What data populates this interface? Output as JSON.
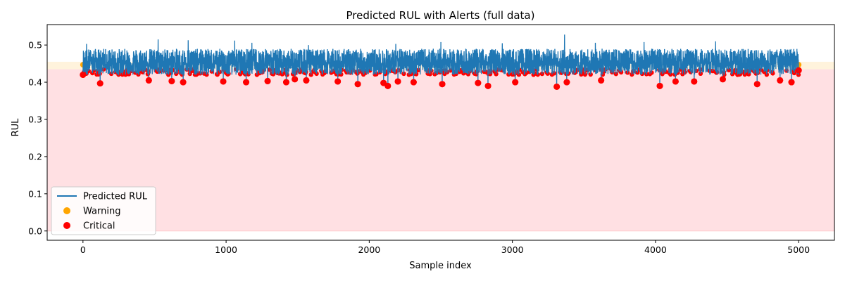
{
  "chart_data": {
    "type": "line",
    "title": "Predicted RUL with Alerts (full data)",
    "xlabel": "Sample index",
    "ylabel": "RUL",
    "xlim": [
      -250,
      5250
    ],
    "ylim": [
      -0.025,
      0.555
    ],
    "xticks": [
      0,
      1000,
      2000,
      3000,
      4000,
      5000
    ],
    "yticks": [
      0.0,
      0.1,
      0.2,
      0.3,
      0.4,
      0.5
    ],
    "xtick_labels": [
      "0",
      "1000",
      "2000",
      "3000",
      "4000",
      "5000"
    ],
    "ytick_labels": [
      "0.0",
      "0.1",
      "0.2",
      "0.3",
      "0.4",
      "0.5"
    ],
    "grid": false,
    "legend_position": "lower-left",
    "bands": [
      {
        "name": "Critical",
        "y_from": 0.0,
        "y_to": 0.435,
        "x_from": -250,
        "x_to": 5250,
        "color": "#ffe0e3"
      },
      {
        "name": "Warning",
        "y_from": 0.435,
        "y_to": 0.455,
        "x_from": -250,
        "x_to": 5250,
        "color": "#fff3dc"
      }
    ],
    "series": [
      {
        "name": "Predicted RUL",
        "kind": "line",
        "color": "#1f77b4",
        "x_range": [
          0,
          5000
        ],
        "n_points": 5000,
        "baseline": 0.445,
        "upper_envelope": 0.49,
        "lower_envelope": 0.41,
        "spikes": [
          {
            "x": 25,
            "y": 0.503
          },
          {
            "x": 525,
            "y": 0.515
          },
          {
            "x": 700,
            "y": 0.515
          },
          {
            "x": 735,
            "y": 0.513
          },
          {
            "x": 1060,
            "y": 0.512
          },
          {
            "x": 1180,
            "y": 0.506
          },
          {
            "x": 1575,
            "y": 0.5
          },
          {
            "x": 2185,
            "y": 0.503
          },
          {
            "x": 2500,
            "y": 0.508
          },
          {
            "x": 2930,
            "y": 0.505
          },
          {
            "x": 3365,
            "y": 0.528
          },
          {
            "x": 3580,
            "y": 0.506
          },
          {
            "x": 3920,
            "y": 0.508
          },
          {
            "x": 4420,
            "y": 0.51
          },
          {
            "x": 4950,
            "y": 0.505
          }
        ]
      },
      {
        "name": "Warning",
        "kind": "scatter",
        "color": "#ffa500",
        "rule": "0.435 <= y < 0.455",
        "points": [
          {
            "x": 0,
            "y": 0.447
          },
          {
            "x": 5000,
            "y": 0.447
          }
        ]
      },
      {
        "name": "Critical",
        "kind": "scatter",
        "color": "#ff0000",
        "rule": "y < 0.435",
        "dips": [
          {
            "x": 0,
            "y": 0.42
          },
          {
            "x": 120,
            "y": 0.397
          },
          {
            "x": 460,
            "y": 0.405
          },
          {
            "x": 620,
            "y": 0.403
          },
          {
            "x": 700,
            "y": 0.4
          },
          {
            "x": 980,
            "y": 0.402
          },
          {
            "x": 1140,
            "y": 0.4
          },
          {
            "x": 1290,
            "y": 0.403
          },
          {
            "x": 1420,
            "y": 0.4
          },
          {
            "x": 1480,
            "y": 0.408
          },
          {
            "x": 1560,
            "y": 0.405
          },
          {
            "x": 1780,
            "y": 0.402
          },
          {
            "x": 1920,
            "y": 0.395
          },
          {
            "x": 2100,
            "y": 0.398
          },
          {
            "x": 2130,
            "y": 0.39
          },
          {
            "x": 2200,
            "y": 0.402
          },
          {
            "x": 2310,
            "y": 0.4
          },
          {
            "x": 2510,
            "y": 0.395
          },
          {
            "x": 2760,
            "y": 0.398
          },
          {
            "x": 2830,
            "y": 0.39
          },
          {
            "x": 3020,
            "y": 0.4
          },
          {
            "x": 3310,
            "y": 0.388
          },
          {
            "x": 3380,
            "y": 0.4
          },
          {
            "x": 3620,
            "y": 0.405
          },
          {
            "x": 4030,
            "y": 0.39
          },
          {
            "x": 4140,
            "y": 0.402
          },
          {
            "x": 4270,
            "y": 0.402
          },
          {
            "x": 4470,
            "y": 0.408
          },
          {
            "x": 4710,
            "y": 0.395
          },
          {
            "x": 4870,
            "y": 0.405
          },
          {
            "x": 4950,
            "y": 0.4
          },
          {
            "x": 5000,
            "y": 0.432
          }
        ]
      }
    ],
    "legend": [
      {
        "label": "Predicted RUL",
        "kind": "line",
        "color": "#1f77b4"
      },
      {
        "label": "Warning",
        "kind": "marker",
        "color": "#ffa500"
      },
      {
        "label": "Critical",
        "kind": "marker",
        "color": "#ff0000"
      }
    ]
  }
}
